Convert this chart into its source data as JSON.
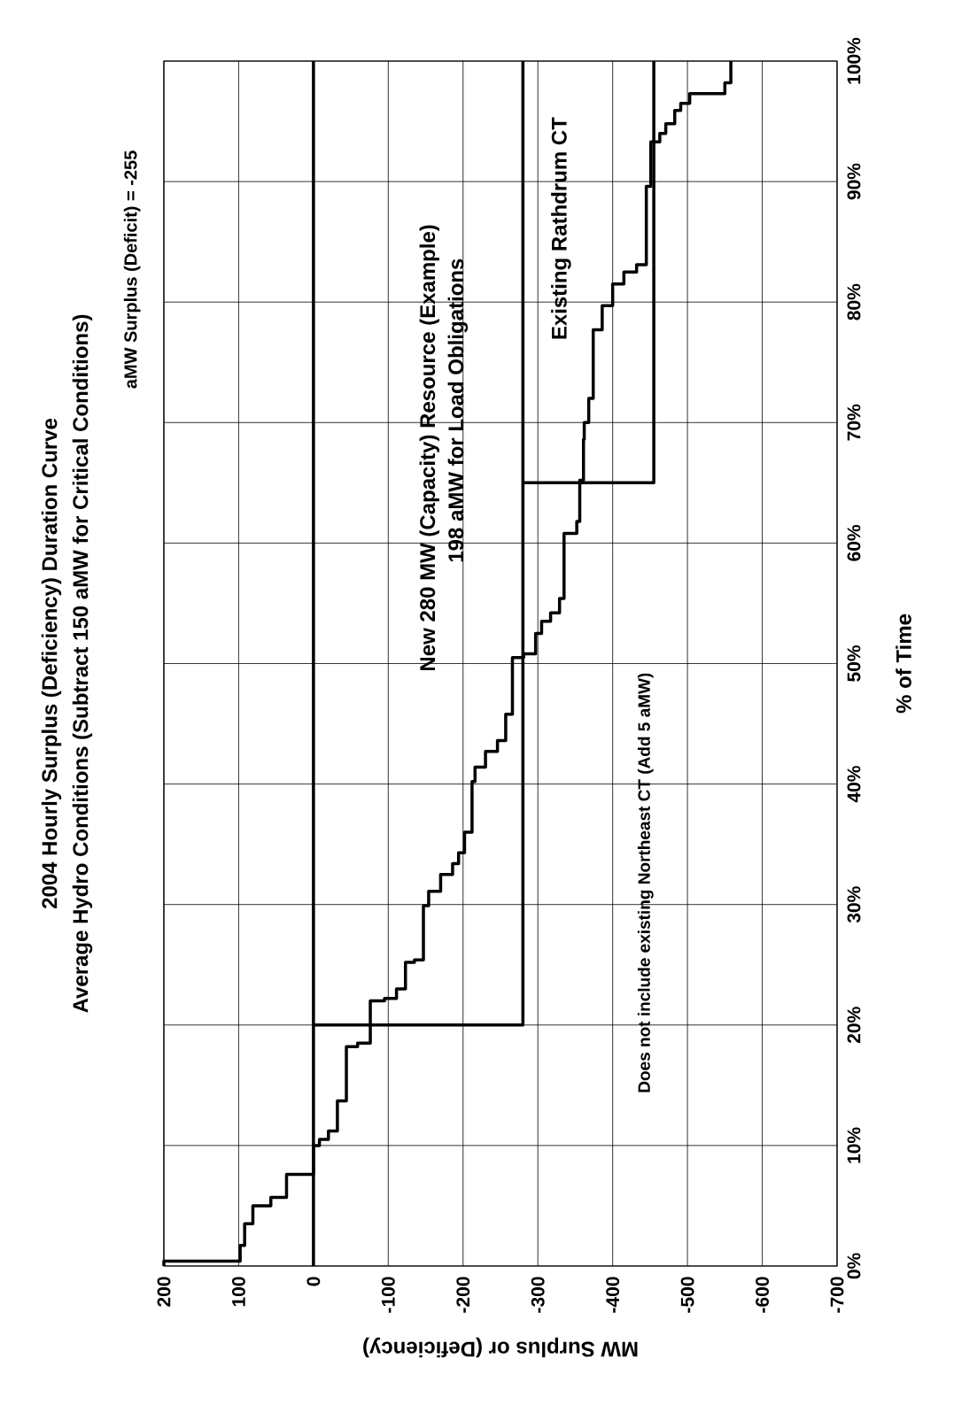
{
  "chart_data": {
    "type": "line",
    "title": "2004 Hourly Surplus (Deficiency) Duration Curve",
    "subtitle": "Average Hydro Conditions (Subtract 150 aMW for Critical Conditions)",
    "xlabel": "MW Surplus or (Deficiency)",
    "ylabel": "% of Time",
    "annotations": [
      "aMW Surplus (Deficit) = -255",
      "New 280 MW (Capacity) Resource (Example)",
      "198 aMW for Load Obligations",
      "Existing Rathdrum CT",
      "Does not include existing Northeast CT (Add 5 aMW)"
    ],
    "series": [
      {
        "color": "#000000",
        "x": [
          200,
          200,
          98,
          98,
          92,
          92,
          81,
          81,
          57,
          57,
          36,
          36,
          0,
          0,
          -8,
          -8,
          -20,
          -20,
          -32,
          -32,
          -44,
          -44,
          -59,
          -59,
          -76,
          -76,
          -95,
          -95,
          -111,
          -111,
          -123,
          -123,
          -135,
          -135,
          -147,
          -147,
          -154,
          -154,
          -170,
          -170,
          -186,
          -186,
          -194,
          -194,
          -202,
          -202,
          -212,
          -212,
          -216,
          -216,
          -230,
          -230,
          -246,
          -246,
          -257,
          -257,
          -266,
          -266,
          -281,
          -281,
          -297,
          -297,
          -305,
          -305,
          -317,
          -317,
          -329,
          -329,
          -335,
          -335,
          -352,
          -352,
          -356,
          -356,
          -361,
          -361,
          -362,
          -362,
          -368,
          -368,
          -374,
          -374,
          -386,
          -386,
          -400,
          -400,
          -415,
          -415,
          -432,
          -432,
          -445,
          -445,
          -451,
          -451,
          -463,
          -463,
          -471,
          -471,
          -483,
          -483,
          -491,
          -491,
          -503,
          -503,
          -550,
          -550,
          -558,
          -558
        ],
        "values": [
          0,
          0.4,
          0.4,
          1.7,
          1.7,
          3.5,
          3.5,
          5.0,
          5.0,
          5.7,
          5.7,
          7.6,
          7.6,
          10.0,
          10.0,
          10.5,
          10.5,
          11.2,
          11.2,
          13.7,
          13.7,
          18.2,
          18.2,
          18.5,
          18.5,
          22.0,
          22.0,
          22.2,
          22.2,
          23.0,
          23.0,
          25.2,
          25.2,
          25.4,
          25.4,
          29.9,
          29.9,
          31.1,
          31.1,
          32.5,
          32.5,
          33.4,
          33.4,
          34.3,
          34.3,
          36.0,
          36.0,
          40.2,
          40.2,
          41.4,
          41.4,
          42.7,
          42.7,
          43.6,
          43.6,
          45.8,
          45.8,
          50.5,
          50.5,
          50.8,
          50.8,
          52.5,
          52.5,
          53.5,
          53.5,
          54.2,
          54.2,
          55.4,
          55.4,
          60.8,
          60.8,
          61.8,
          61.8,
          65.2,
          65.2,
          68.6,
          68.6,
          70.0,
          70.0,
          72.0,
          72.0,
          77.7,
          77.7,
          79.7,
          79.7,
          81.5,
          81.5,
          82.5,
          82.5,
          83.1,
          83.1,
          89.6,
          89.6,
          93.3,
          93.3,
          94.0,
          94.0,
          94.8,
          94.8,
          95.9,
          95.9,
          96.5,
          96.5,
          97.3,
          97.3,
          98.2,
          98.2,
          100
        ]
      },
      {
        "color": "#000000",
        "x": [
          0,
          -280,
          -280
        ],
        "values": [
          20,
          20,
          100
        ]
      },
      {
        "color": "#000000",
        "x": [
          -280,
          -455,
          -455
        ],
        "values": [
          65,
          65,
          100
        ]
      }
    ],
    "ref_lines": [
      {
        "axis": "x",
        "value": 0,
        "color": "#000000"
      }
    ],
    "xlim": [
      200,
      -700
    ],
    "xticks": [
      200,
      100,
      0,
      -100,
      -200,
      -300,
      -400,
      -500,
      -600,
      -700
    ],
    "ylim": [
      0,
      100
    ],
    "yticks": [
      {
        "value": 0,
        "label": "0%"
      },
      {
        "value": 10,
        "label": "10%"
      },
      {
        "value": 20,
        "label": "20%"
      },
      {
        "value": 30,
        "label": "30%"
      },
      {
        "value": 40,
        "label": "40%"
      },
      {
        "value": 50,
        "label": "50%"
      },
      {
        "value": 60,
        "label": "60%"
      },
      {
        "value": 70,
        "label": "70%"
      },
      {
        "value": 80,
        "label": "80%"
      },
      {
        "value": 90,
        "label": "90%"
      },
      {
        "value": 100,
        "label": "100%"
      }
    ],
    "grid": true
  }
}
